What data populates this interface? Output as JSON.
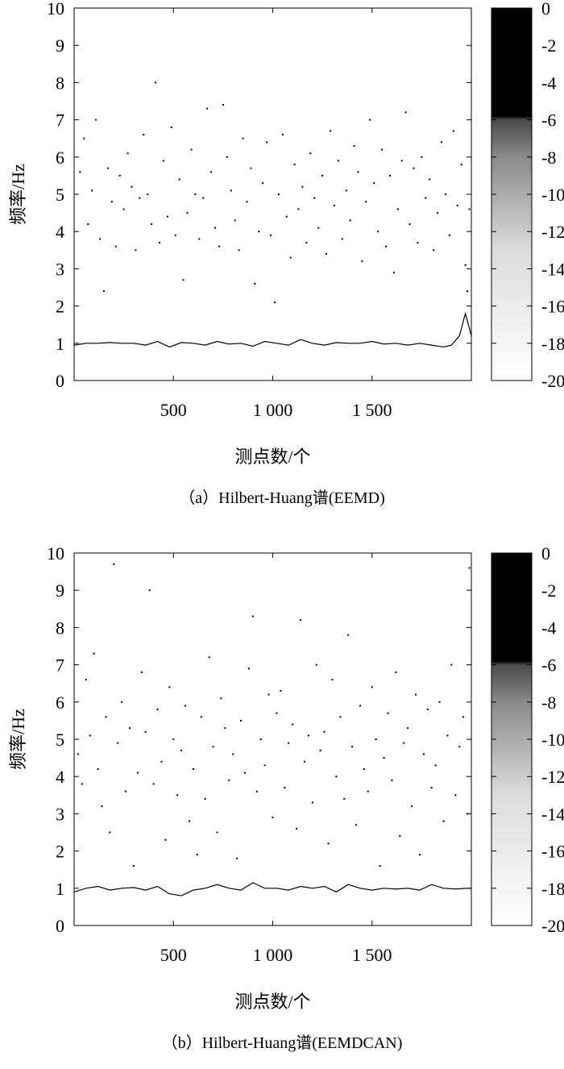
{
  "charts": [
    {
      "caption": "（a）Hilbert-Huang谱(EEMD)",
      "chart_data": {
        "type": "scatter",
        "subtype": "hilbert-huang-spectrum",
        "xlabel": "测点数/个",
        "ylabel": "频率/Hz",
        "xlim": [
          0,
          2000
        ],
        "ylim": [
          0,
          10
        ],
        "x_ticks": [
          500,
          1000,
          1500
        ],
        "x_tick_labels": [
          "500",
          "1 000",
          "1 500"
        ],
        "y_ticks": [
          0,
          1,
          2,
          3,
          4,
          5,
          6,
          7,
          8,
          9,
          10
        ],
        "colorbar": {
          "range": [
            -20,
            0
          ],
          "ticks": [
            0,
            -2,
            -4,
            -6,
            -8,
            -10,
            -12,
            -14,
            -16,
            -18,
            -20
          ],
          "cmap": "white-to-black"
        },
        "series": [
          {
            "name": "",
            "x": [
              0,
              60,
              120,
              180,
              240,
              300,
              360,
              420,
              480,
              540,
              600,
              660,
              720,
              780,
              840,
              900,
              960,
              1020,
              1080,
              1140,
              1200,
              1260,
              1320,
              1380,
              1440,
              1500,
              1560,
              1620,
              1680,
              1740,
              1800,
              1860,
              1900,
              1940,
              1970,
              2000
            ],
            "y": [
              0.95,
              1.0,
              1.0,
              1.02,
              1.0,
              1.0,
              0.95,
              1.05,
              0.9,
              1.02,
              1.0,
              0.95,
              1.05,
              0.98,
              1.0,
              0.92,
              1.05,
              1.0,
              0.95,
              1.1,
              1.0,
              0.95,
              1.02,
              1.0,
              1.0,
              1.05,
              0.98,
              1.0,
              0.95,
              1.0,
              0.95,
              0.9,
              0.95,
              1.2,
              1.8,
              1.2
            ]
          }
        ],
        "scatter_points": [
          [
            30,
            5.6
          ],
          [
            50,
            6.5
          ],
          [
            70,
            4.2
          ],
          [
            90,
            5.1
          ],
          [
            110,
            7.0
          ],
          [
            130,
            3.8
          ],
          [
            150,
            2.4
          ],
          [
            170,
            5.7
          ],
          [
            190,
            4.8
          ],
          [
            210,
            3.6
          ],
          [
            230,
            5.5
          ],
          [
            250,
            4.6
          ],
          [
            270,
            6.1
          ],
          [
            290,
            5.2
          ],
          [
            310,
            3.5
          ],
          [
            330,
            4.9
          ],
          [
            350,
            6.6
          ],
          [
            370,
            5.0
          ],
          [
            390,
            4.2
          ],
          [
            410,
            8.0
          ],
          [
            430,
            3.7
          ],
          [
            450,
            5.9
          ],
          [
            470,
            4.4
          ],
          [
            490,
            6.8
          ],
          [
            510,
            3.9
          ],
          [
            530,
            5.4
          ],
          [
            550,
            2.7
          ],
          [
            570,
            4.5
          ],
          [
            590,
            6.2
          ],
          [
            610,
            5.0
          ],
          [
            630,
            3.8
          ],
          [
            650,
            4.9
          ],
          [
            670,
            7.3
          ],
          [
            690,
            5.6
          ],
          [
            710,
            4.1
          ],
          [
            730,
            3.6
          ],
          [
            750,
            7.4
          ],
          [
            770,
            6.0
          ],
          [
            790,
            5.1
          ],
          [
            810,
            4.3
          ],
          [
            830,
            3.5
          ],
          [
            850,
            6.5
          ],
          [
            870,
            4.8
          ],
          [
            890,
            5.7
          ],
          [
            910,
            2.6
          ],
          [
            930,
            4.0
          ],
          [
            950,
            5.3
          ],
          [
            970,
            6.4
          ],
          [
            990,
            3.9
          ],
          [
            1010,
            2.1
          ],
          [
            1030,
            5.0
          ],
          [
            1050,
            6.6
          ],
          [
            1070,
            4.4
          ],
          [
            1090,
            3.3
          ],
          [
            1110,
            5.8
          ],
          [
            1130,
            4.6
          ],
          [
            1150,
            5.2
          ],
          [
            1170,
            3.7
          ],
          [
            1190,
            6.1
          ],
          [
            1210,
            4.9
          ],
          [
            1230,
            4.1
          ],
          [
            1250,
            5.5
          ],
          [
            1270,
            3.4
          ],
          [
            1290,
            6.7
          ],
          [
            1310,
            4.7
          ],
          [
            1330,
            5.9
          ],
          [
            1350,
            3.8
          ],
          [
            1370,
            5.1
          ],
          [
            1390,
            4.3
          ],
          [
            1410,
            6.3
          ],
          [
            1430,
            5.6
          ],
          [
            1450,
            3.2
          ],
          [
            1470,
            4.8
          ],
          [
            1490,
            7.0
          ],
          [
            1510,
            5.3
          ],
          [
            1530,
            4.0
          ],
          [
            1550,
            6.2
          ],
          [
            1570,
            3.6
          ],
          [
            1590,
            5.5
          ],
          [
            1610,
            2.9
          ],
          [
            1630,
            4.6
          ],
          [
            1650,
            5.9
          ],
          [
            1670,
            7.2
          ],
          [
            1690,
            4.2
          ],
          [
            1710,
            5.7
          ],
          [
            1730,
            3.7
          ],
          [
            1750,
            6.0
          ],
          [
            1770,
            4.9
          ],
          [
            1790,
            5.4
          ],
          [
            1810,
            3.5
          ],
          [
            1830,
            4.5
          ],
          [
            1850,
            6.4
          ],
          [
            1870,
            5.0
          ],
          [
            1890,
            3.9
          ],
          [
            1910,
            6.7
          ],
          [
            1930,
            4.7
          ],
          [
            1950,
            5.8
          ],
          [
            1970,
            3.1
          ],
          [
            1990,
            4.6
          ],
          [
            1980,
            2.4
          ]
        ]
      }
    },
    {
      "caption": "（b）Hilbert-Huang谱(EEMDCAN)",
      "chart_data": {
        "type": "scatter",
        "subtype": "hilbert-huang-spectrum",
        "xlabel": "测点数/个",
        "ylabel": "频率/Hz",
        "xlim": [
          0,
          2000
        ],
        "ylim": [
          0,
          10
        ],
        "x_ticks": [
          500,
          1000,
          1500
        ],
        "x_tick_labels": [
          "500",
          "1 000",
          "1 500"
        ],
        "y_ticks": [
          0,
          1,
          2,
          3,
          4,
          5,
          6,
          7,
          8,
          9,
          10
        ],
        "colorbar": {
          "range": [
            -20,
            0
          ],
          "ticks": [
            0,
            -2,
            -4,
            -6,
            -8,
            -10,
            -12,
            -14,
            -16,
            -18,
            -20
          ],
          "cmap": "white-to-black"
        },
        "series": [
          {
            "name": "",
            "x": [
              0,
              60,
              120,
              180,
              240,
              300,
              360,
              420,
              480,
              540,
              600,
              660,
              720,
              780,
              840,
              900,
              960,
              1020,
              1080,
              1140,
              1200,
              1260,
              1320,
              1380,
              1440,
              1500,
              1560,
              1620,
              1680,
              1740,
              1800,
              1860,
              1920,
              1980,
              2000
            ],
            "y": [
              0.9,
              1.0,
              1.05,
              0.95,
              1.0,
              1.02,
              0.95,
              1.05,
              0.85,
              0.8,
              0.95,
              1.0,
              1.1,
              1.0,
              0.95,
              1.15,
              1.0,
              1.0,
              0.95,
              1.05,
              1.0,
              1.05,
              0.9,
              1.1,
              1.0,
              0.95,
              1.0,
              0.98,
              1.0,
              0.95,
              1.1,
              1.0,
              0.98,
              1.0,
              1.0
            ]
          }
        ],
        "scatter_points": [
          [
            20,
            4.6
          ],
          [
            40,
            3.8
          ],
          [
            60,
            6.6
          ],
          [
            80,
            5.1
          ],
          [
            100,
            7.3
          ],
          [
            120,
            4.2
          ],
          [
            140,
            3.2
          ],
          [
            160,
            5.6
          ],
          [
            180,
            2.5
          ],
          [
            200,
            9.7
          ],
          [
            220,
            4.9
          ],
          [
            240,
            6.0
          ],
          [
            260,
            3.6
          ],
          [
            280,
            5.3
          ],
          [
            300,
            1.6
          ],
          [
            320,
            4.1
          ],
          [
            340,
            6.8
          ],
          [
            360,
            5.2
          ],
          [
            380,
            9.0
          ],
          [
            400,
            3.8
          ],
          [
            420,
            5.8
          ],
          [
            440,
            4.4
          ],
          [
            460,
            2.3
          ],
          [
            480,
            6.4
          ],
          [
            500,
            5.0
          ],
          [
            520,
            3.5
          ],
          [
            540,
            4.7
          ],
          [
            560,
            5.9
          ],
          [
            580,
            2.8
          ],
          [
            600,
            4.2
          ],
          [
            620,
            1.9
          ],
          [
            640,
            5.6
          ],
          [
            660,
            3.4
          ],
          [
            680,
            7.2
          ],
          [
            700,
            4.8
          ],
          [
            720,
            2.5
          ],
          [
            740,
            6.1
          ],
          [
            760,
            5.3
          ],
          [
            780,
            3.9
          ],
          [
            800,
            4.6
          ],
          [
            820,
            1.8
          ],
          [
            840,
            5.5
          ],
          [
            860,
            4.1
          ],
          [
            880,
            6.9
          ],
          [
            900,
            8.3
          ],
          [
            920,
            3.6
          ],
          [
            940,
            5.0
          ],
          [
            960,
            4.3
          ],
          [
            980,
            6.2
          ],
          [
            1000,
            2.9
          ],
          [
            1020,
            5.7
          ],
          [
            1040,
            6.3
          ],
          [
            1060,
            3.7
          ],
          [
            1080,
            4.9
          ],
          [
            1100,
            5.4
          ],
          [
            1120,
            2.6
          ],
          [
            1140,
            8.2
          ],
          [
            1160,
            4.4
          ],
          [
            1180,
            5.1
          ],
          [
            1200,
            3.3
          ],
          [
            1220,
            7.0
          ],
          [
            1240,
            4.7
          ],
          [
            1260,
            5.2
          ],
          [
            1280,
            2.2
          ],
          [
            1300,
            6.6
          ],
          [
            1320,
            4.0
          ],
          [
            1340,
            5.6
          ],
          [
            1360,
            3.4
          ],
          [
            1380,
            7.8
          ],
          [
            1400,
            4.8
          ],
          [
            1420,
            2.7
          ],
          [
            1440,
            5.9
          ],
          [
            1460,
            4.2
          ],
          [
            1480,
            3.6
          ],
          [
            1500,
            6.4
          ],
          [
            1520,
            5.0
          ],
          [
            1540,
            1.6
          ],
          [
            1560,
            4.5
          ],
          [
            1580,
            5.7
          ],
          [
            1600,
            3.9
          ],
          [
            1620,
            6.8
          ],
          [
            1640,
            2.4
          ],
          [
            1660,
            4.9
          ],
          [
            1680,
            5.3
          ],
          [
            1700,
            3.2
          ],
          [
            1720,
            6.2
          ],
          [
            1740,
            1.9
          ],
          [
            1760,
            4.6
          ],
          [
            1780,
            5.8
          ],
          [
            1800,
            3.7
          ],
          [
            1820,
            4.3
          ],
          [
            1840,
            6.0
          ],
          [
            1860,
            2.8
          ],
          [
            1880,
            5.1
          ],
          [
            1900,
            7.0
          ],
          [
            1920,
            3.5
          ],
          [
            1940,
            4.8
          ],
          [
            1960,
            5.6
          ],
          [
            1980,
            3.0
          ],
          [
            1990,
            9.6
          ]
        ]
      }
    }
  ]
}
